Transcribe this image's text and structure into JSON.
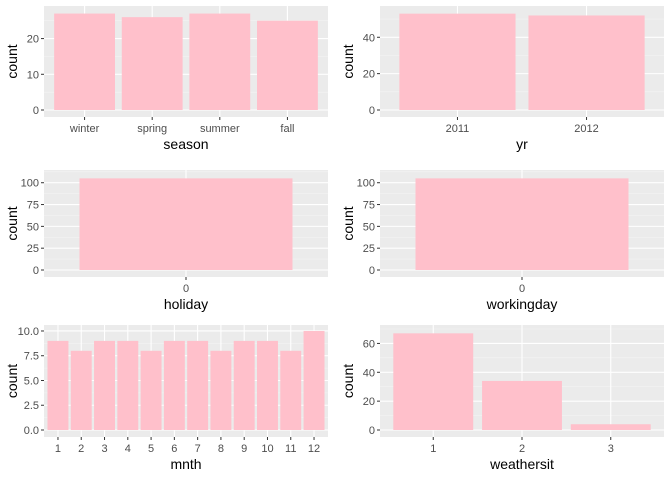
{
  "colors": {
    "panel": "#ebebeb",
    "grid_major": "#ffffff",
    "grid_minor": "#f4f4f4",
    "bar": "#ffc0cb",
    "tick": "#333333"
  },
  "chart_data": [
    {
      "type": "bar",
      "xlabel": "season",
      "ylabel": "count",
      "categories": [
        "winter",
        "spring",
        "summer",
        "fall"
      ],
      "values": [
        27,
        26,
        27,
        25
      ],
      "ylim": [
        0,
        28
      ],
      "yticks": [
        0,
        10,
        20
      ],
      "grid": true
    },
    {
      "type": "bar",
      "xlabel": "yr",
      "ylabel": "count",
      "categories": [
        "2011",
        "2012"
      ],
      "values": [
        53,
        52
      ],
      "ylim": [
        0,
        55
      ],
      "yticks": [
        0,
        20,
        40
      ],
      "grid": true
    },
    {
      "type": "bar",
      "xlabel": "holiday",
      "ylabel": "count",
      "categories": [
        "0"
      ],
      "values": [
        105
      ],
      "ylim": [
        0,
        110
      ],
      "yticks": [
        0,
        25,
        50,
        75,
        100
      ],
      "grid": true
    },
    {
      "type": "bar",
      "xlabel": "workingday",
      "ylabel": "count",
      "categories": [
        "0"
      ],
      "values": [
        105
      ],
      "ylim": [
        0,
        110
      ],
      "yticks": [
        0,
        25,
        50,
        75,
        100
      ],
      "grid": true
    },
    {
      "type": "bar",
      "xlabel": "mnth",
      "ylabel": "count",
      "categories": [
        "1",
        "2",
        "3",
        "4",
        "5",
        "6",
        "7",
        "8",
        "9",
        "10",
        "11",
        "12"
      ],
      "values": [
        9,
        8,
        9,
        9,
        8,
        9,
        9,
        8,
        9,
        9,
        8,
        10
      ],
      "ylim": [
        0,
        10.2
      ],
      "yticks": [
        0,
        2.5,
        5,
        7.5,
        10
      ],
      "ytick_labels": [
        "0.0",
        "2.5",
        "5.0",
        "7.5",
        "10.0"
      ],
      "grid": true
    },
    {
      "type": "bar",
      "xlabel": "weathersit",
      "ylabel": "count",
      "categories": [
        "1",
        "2",
        "3"
      ],
      "values": [
        67,
        34,
        4
      ],
      "ylim": [
        0,
        70
      ],
      "yticks": [
        0,
        20,
        40,
        60
      ],
      "grid": true
    }
  ]
}
